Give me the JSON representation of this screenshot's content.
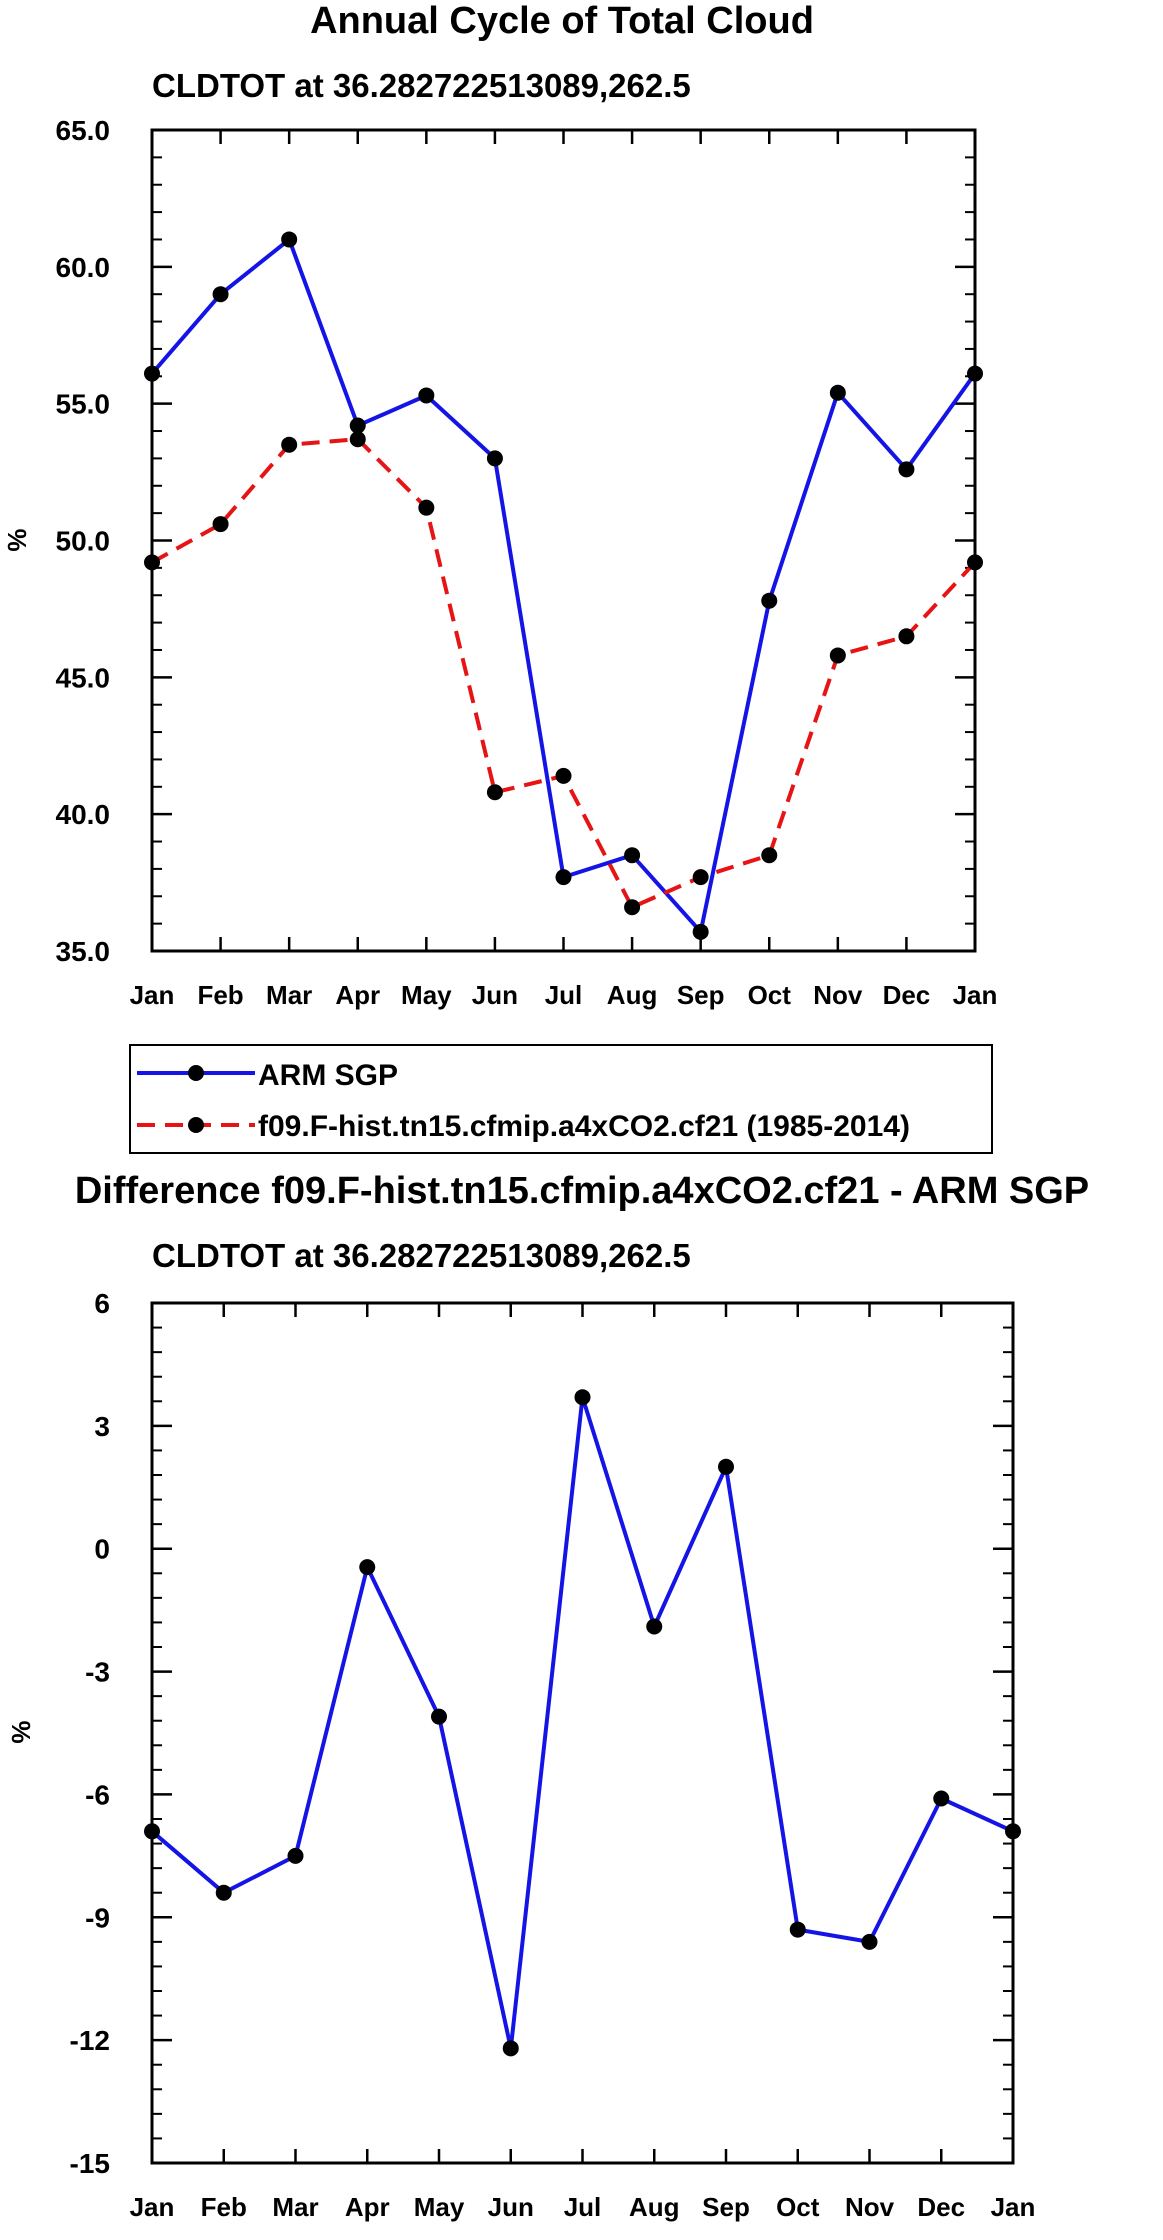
{
  "chart_data": [
    {
      "type": "line",
      "title": "Annual Cycle of Total Cloud",
      "subtitle": "CLDTOT at 36.282722513089,262.5",
      "xlabel": "",
      "ylabel": "%",
      "categories": [
        "Jan",
        "Feb",
        "Mar",
        "Apr",
        "May",
        "Jun",
        "Jul",
        "Aug",
        "Sep",
        "Oct",
        "Nov",
        "Dec",
        "Jan"
      ],
      "ylim": [
        35.0,
        65.0
      ],
      "yticks": [
        35.0,
        40.0,
        45.0,
        50.0,
        55.0,
        60.0,
        65.0
      ],
      "ytick_labels": [
        "35.0",
        "40.0",
        "45.0",
        "50.0",
        "55.0",
        "60.0",
        "65.0"
      ],
      "grid": false,
      "legend_position": "below",
      "series": [
        {
          "name": "ARM SGP",
          "color": "#1414e6",
          "dash": "solid",
          "values": [
            56.1,
            59.0,
            61.0,
            54.2,
            55.3,
            53.0,
            37.7,
            38.5,
            35.7,
            47.8,
            55.4,
            52.6,
            56.1
          ]
        },
        {
          "name": "f09.F-hist.tn15.cfmip.a4xCO2.cf21 (1985-2014)",
          "color": "#e61414",
          "dash": "dashed",
          "values": [
            49.2,
            50.6,
            53.5,
            53.7,
            51.2,
            40.8,
            41.4,
            36.6,
            37.7,
            38.5,
            45.8,
            46.5,
            49.2
          ]
        }
      ]
    },
    {
      "type": "line",
      "title": "Difference f09.F-hist.tn15.cfmip.a4xCO2.cf21 - ARM SGP",
      "subtitle": "CLDTOT at 36.282722513089,262.5",
      "xlabel": "",
      "ylabel": "%",
      "categories": [
        "Jan",
        "Feb",
        "Mar",
        "Apr",
        "May",
        "Jun",
        "Jul",
        "Aug",
        "Sep",
        "Oct",
        "Nov",
        "Dec",
        "Jan"
      ],
      "ylim": [
        -15,
        6
      ],
      "yticks": [
        -15,
        -12,
        -9,
        -6,
        -3,
        0,
        3,
        6
      ],
      "ytick_labels": [
        "-15",
        "-12",
        "-9",
        "-6",
        "-3",
        "0",
        "3",
        "6"
      ],
      "grid": false,
      "series": [
        {
          "name": "Difference",
          "color": "#1414e6",
          "dash": "solid",
          "values": [
            -6.9,
            -8.4,
            -7.5,
            -0.45,
            -4.1,
            -12.2,
            3.7,
            -1.9,
            2.0,
            -9.3,
            -9.6,
            -6.1,
            -6.9
          ]
        }
      ]
    }
  ]
}
